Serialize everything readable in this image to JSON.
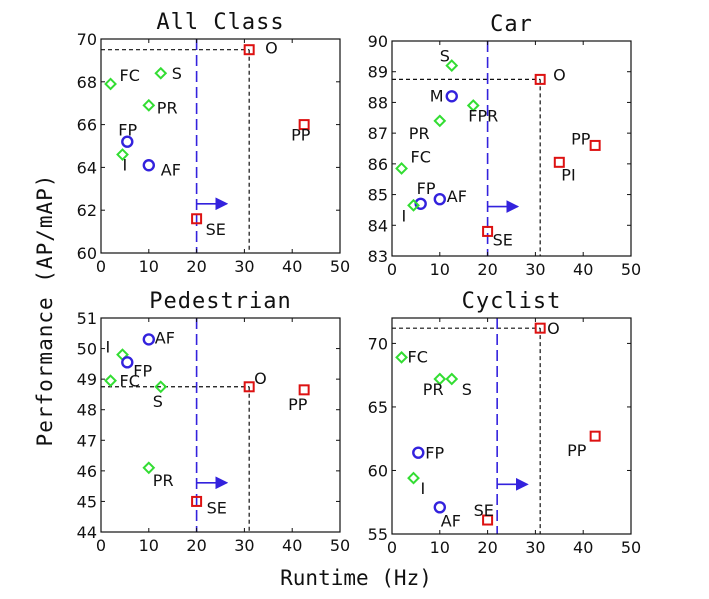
{
  "figure": {
    "xlabel": "Runtime (Hz)",
    "ylabel": "Performance (AP/mAP)"
  },
  "legend_colors": {
    "green": "#33dd33",
    "blue": "#3322dd",
    "red": "#dd1111"
  },
  "chart_data": [
    {
      "type": "scatter",
      "title": "All Class",
      "xlim": [
        0,
        50
      ],
      "ylim": [
        60,
        70
      ],
      "xticks": [
        "0",
        "10",
        "20",
        "30",
        "40",
        "50"
      ],
      "yticks": [
        "60",
        "62",
        "64",
        "66",
        "68",
        "70"
      ],
      "points": [
        {
          "label": "FC",
          "x": 2,
          "y": 67.9,
          "marker": "diamond",
          "color": "green"
        },
        {
          "label": "S",
          "x": 12.5,
          "y": 68.4,
          "marker": "diamond",
          "color": "green"
        },
        {
          "label": "PR",
          "x": 10,
          "y": 66.9,
          "marker": "diamond",
          "color": "green"
        },
        {
          "label": "FP",
          "x": 5.5,
          "y": 65.2,
          "marker": "circle",
          "color": "blue"
        },
        {
          "label": "I",
          "x": 4.5,
          "y": 64.6,
          "marker": "diamond",
          "color": "green"
        },
        {
          "label": "AF",
          "x": 10,
          "y": 64.1,
          "marker": "circle",
          "color": "blue"
        },
        {
          "label": "O",
          "x": 31,
          "y": 69.5,
          "marker": "square",
          "color": "red"
        },
        {
          "label": "PP",
          "x": 42.5,
          "y": 66.0,
          "marker": "square",
          "color": "red"
        },
        {
          "label": "SE",
          "x": 20,
          "y": 61.6,
          "marker": "square",
          "color": "red"
        }
      ],
      "ref_hline": 69.5,
      "ref_vline": 31,
      "threshold_x": 20
    },
    {
      "type": "scatter",
      "title": "Car",
      "xlim": [
        0,
        50
      ],
      "ylim": [
        83,
        90
      ],
      "xticks": [
        "0",
        "10",
        "20",
        "30",
        "40",
        "50"
      ],
      "yticks": [
        "83",
        "84",
        "85",
        "86",
        "87",
        "88",
        "89",
        "90"
      ],
      "points": [
        {
          "label": "S",
          "x": 12.5,
          "y": 89.2,
          "marker": "diamond",
          "color": "green"
        },
        {
          "label": "M",
          "x": 12.5,
          "y": 88.2,
          "marker": "circle",
          "color": "blue"
        },
        {
          "label": "FPR",
          "x": 17,
          "y": 87.9,
          "marker": "diamond",
          "color": "green"
        },
        {
          "label": "PR",
          "x": 10,
          "y": 87.4,
          "marker": "diamond",
          "color": "green"
        },
        {
          "label": "FC",
          "x": 2,
          "y": 85.85,
          "marker": "diamond",
          "color": "green"
        },
        {
          "label": "FP",
          "x": 6,
          "y": 84.7,
          "marker": "circle",
          "color": "blue"
        },
        {
          "label": "I",
          "x": 4.5,
          "y": 84.65,
          "marker": "diamond",
          "color": "green"
        },
        {
          "label": "AF",
          "x": 10,
          "y": 84.85,
          "marker": "circle",
          "color": "blue"
        },
        {
          "label": "O",
          "x": 31,
          "y": 88.75,
          "marker": "square",
          "color": "red"
        },
        {
          "label": "PP",
          "x": 42.5,
          "y": 86.6,
          "marker": "square",
          "color": "red"
        },
        {
          "label": "PI",
          "x": 35,
          "y": 86.05,
          "marker": "square",
          "color": "red"
        },
        {
          "label": "SE",
          "x": 20,
          "y": 83.8,
          "marker": "square",
          "color": "red"
        }
      ],
      "ref_hline": 88.75,
      "ref_vline": 31,
      "threshold_x": 20
    },
    {
      "type": "scatter",
      "title": "Pedestrian",
      "xlim": [
        0,
        50
      ],
      "ylim": [
        44,
        51
      ],
      "xticks": [
        "0",
        "10",
        "20",
        "30",
        "40",
        "50"
      ],
      "yticks": [
        "44",
        "45",
        "46",
        "47",
        "48",
        "49",
        "50",
        "51"
      ],
      "points": [
        {
          "label": "AF",
          "x": 10,
          "y": 50.3,
          "marker": "circle",
          "color": "blue"
        },
        {
          "label": "I",
          "x": 4.5,
          "y": 49.8,
          "marker": "diamond",
          "color": "green"
        },
        {
          "label": "FP",
          "x": 5.5,
          "y": 49.55,
          "marker": "circle",
          "color": "blue"
        },
        {
          "label": "FC",
          "x": 2,
          "y": 48.95,
          "marker": "diamond",
          "color": "green"
        },
        {
          "label": "S",
          "x": 12.5,
          "y": 48.75,
          "marker": "diamond",
          "color": "green"
        },
        {
          "label": "PR",
          "x": 10,
          "y": 46.1,
          "marker": "diamond",
          "color": "green"
        },
        {
          "label": "O",
          "x": 31,
          "y": 48.75,
          "marker": "square",
          "color": "red"
        },
        {
          "label": "PP",
          "x": 42.5,
          "y": 48.65,
          "marker": "square",
          "color": "red"
        },
        {
          "label": "SE",
          "x": 20,
          "y": 45.0,
          "marker": "square",
          "color": "red"
        }
      ],
      "ref_hline": 48.75,
      "ref_vline": 31,
      "threshold_x": 20
    },
    {
      "type": "scatter",
      "title": "Cyclist",
      "xlim": [
        0,
        50
      ],
      "ylim": [
        55,
        72
      ],
      "xticks": [
        "0",
        "10",
        "20",
        "30",
        "40",
        "50"
      ],
      "yticks": [
        "55",
        "60",
        "65",
        "70"
      ],
      "points": [
        {
          "label": "FC",
          "x": 2,
          "y": 68.9,
          "marker": "diamond",
          "color": "green"
        },
        {
          "label": "PR",
          "x": 10,
          "y": 67.2,
          "marker": "diamond",
          "color": "green"
        },
        {
          "label": "S",
          "x": 12.5,
          "y": 67.2,
          "marker": "diamond",
          "color": "green"
        },
        {
          "label": "FP",
          "x": 5.5,
          "y": 61.4,
          "marker": "circle",
          "color": "blue"
        },
        {
          "label": "I",
          "x": 4.5,
          "y": 59.4,
          "marker": "diamond",
          "color": "green"
        },
        {
          "label": "AF",
          "x": 10,
          "y": 57.1,
          "marker": "circle",
          "color": "blue"
        },
        {
          "label": "SE",
          "x": 20,
          "y": 56.1,
          "marker": "square",
          "color": "red"
        },
        {
          "label": "O",
          "x": 31,
          "y": 71.2,
          "marker": "square",
          "color": "red"
        },
        {
          "label": "PP",
          "x": 42.5,
          "y": 62.7,
          "marker": "square",
          "color": "red"
        }
      ],
      "ref_hline": 71.2,
      "ref_vline": 31,
      "threshold_x": 22
    }
  ]
}
